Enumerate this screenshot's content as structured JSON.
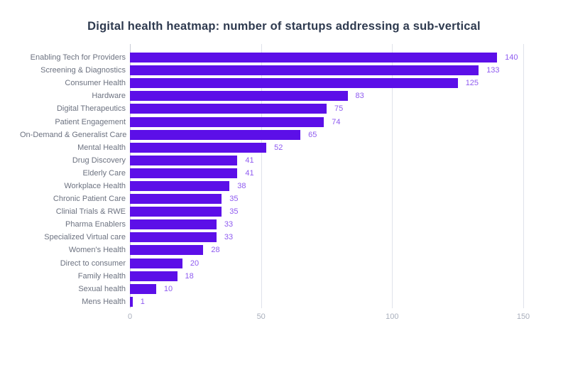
{
  "title": "Digital health heatmap: number of startups addressing a sub-vertical",
  "colors": {
    "bar": "#5C0FE8",
    "value_label": "#8F5BF0",
    "title": "#2E3A4F",
    "category_label": "#6C7280",
    "tick_label": "#A9AFBC",
    "gridline": "#DFE2EA",
    "zero_line": "#C9CCD6",
    "background": "#FFFFFF"
  },
  "chart_data": {
    "type": "bar",
    "orientation": "horizontal",
    "title": "Digital health heatmap: number of startups addressing a sub-vertical",
    "categories": [
      "Enabling Tech for Providers",
      "Screening & Diagnostics",
      "Consumer Health",
      "Hardware",
      "Digital Therapeutics",
      "Patient Engagement",
      "On-Demand & Generalist Care",
      "Mental Health",
      "Drug Discovery",
      "Elderly Care",
      "Workplace Health",
      "Chronic Patient Care",
      "Clinial Trials & RWE",
      "Pharma Enablers",
      "Specialized Virtual care",
      "Women's Health",
      "Direct to consumer",
      "Family Health",
      "Sexual health",
      "Mens Health"
    ],
    "values": [
      140,
      133,
      125,
      83,
      75,
      74,
      65,
      52,
      41,
      41,
      38,
      35,
      35,
      33,
      33,
      28,
      20,
      18,
      10,
      1
    ],
    "xlabel": "",
    "ylabel": "",
    "x_ticks": [
      0,
      50,
      100,
      150
    ],
    "xlim": [
      0,
      156
    ],
    "grid": "vertical-gridlines",
    "legend": "none",
    "value_labels": "end-of-bar"
  }
}
